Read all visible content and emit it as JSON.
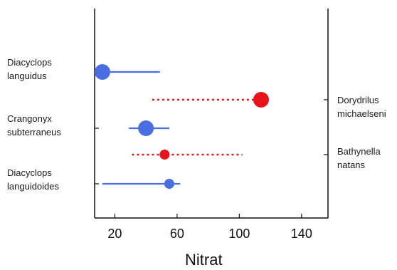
{
  "chart_data": {
    "type": "dot-range",
    "xlabel": "Nitrat",
    "x_ticks": [
      20,
      60,
      100,
      140
    ],
    "xlim": [
      7,
      157
    ],
    "left_labels": [
      {
        "line1": "Diacyclops",
        "line2": "languidus"
      },
      {
        "line1": "Crangonyx",
        "line2": "subterraneus"
      },
      {
        "line1": "Diacyclops",
        "line2": "languidoides"
      }
    ],
    "right_labels": [
      {
        "line1": "Dorydrilus",
        "line2": "michaelseni"
      },
      {
        "line1": "Bathynella",
        "line2": "natans"
      }
    ],
    "series": [
      {
        "species": "Diacyclops languidus",
        "side": "left",
        "point": 12,
        "range": [
          8,
          49
        ],
        "color": "#4a6ee0",
        "style": "solid",
        "marker": "large"
      },
      {
        "species": "Dorydrilus michaelseni",
        "side": "right",
        "point": 114,
        "range": [
          44,
          114
        ],
        "color": "#e8141c",
        "style": "dotted",
        "marker": "large"
      },
      {
        "species": "Crangonyx subterraneus",
        "side": "left",
        "point": 40,
        "range": [
          29,
          55
        ],
        "color": "#4a6ee0",
        "style": "solid",
        "marker": "large"
      },
      {
        "species": "Bathynella natans",
        "side": "right",
        "point": 52,
        "range": [
          31,
          102
        ],
        "color": "#e8141c",
        "style": "dotted",
        "marker": "medium"
      },
      {
        "species": "Diacyclops languidoides",
        "side": "left",
        "point": 55,
        "range": [
          12,
          62
        ],
        "color": "#4a6ee0",
        "style": "solid",
        "marker": "medium"
      }
    ]
  }
}
